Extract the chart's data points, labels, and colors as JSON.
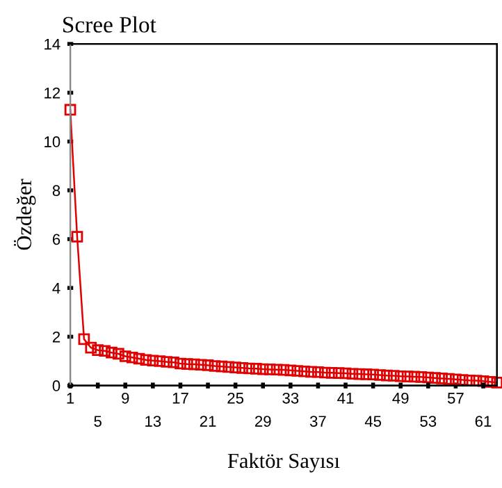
{
  "chart_data": {
    "type": "line",
    "title": "Scree Plot",
    "xlabel": "Faktör Sayısı",
    "ylabel": "Özdeğer",
    "x": [
      1,
      2,
      3,
      4,
      5,
      6,
      7,
      8,
      9,
      10,
      11,
      12,
      13,
      14,
      15,
      16,
      17,
      18,
      19,
      20,
      21,
      22,
      23,
      24,
      25,
      26,
      27,
      28,
      29,
      30,
      31,
      32,
      33,
      34,
      35,
      36,
      37,
      38,
      39,
      40,
      41,
      42,
      43,
      44,
      45,
      46,
      47,
      48,
      49,
      50,
      51,
      52,
      53,
      54,
      55,
      56,
      57,
      58,
      59,
      60,
      61,
      62,
      63
    ],
    "series": [
      {
        "color": "#e00000",
        "values": [
          11.3,
          6.1,
          1.9,
          1.55,
          1.45,
          1.42,
          1.35,
          1.3,
          1.2,
          1.15,
          1.1,
          1.05,
          1.02,
          1.0,
          0.97,
          0.95,
          0.9,
          0.88,
          0.87,
          0.85,
          0.83,
          0.8,
          0.78,
          0.76,
          0.74,
          0.72,
          0.7,
          0.69,
          0.67,
          0.66,
          0.65,
          0.64,
          0.62,
          0.6,
          0.58,
          0.56,
          0.55,
          0.53,
          0.52,
          0.51,
          0.5,
          0.48,
          0.47,
          0.46,
          0.45,
          0.43,
          0.41,
          0.4,
          0.38,
          0.37,
          0.36,
          0.35,
          0.33,
          0.31,
          0.29,
          0.27,
          0.25,
          0.23,
          0.21,
          0.2,
          0.18,
          0.15,
          0.12
        ]
      }
    ],
    "xlim": [
      1,
      63
    ],
    "ylim": [
      0,
      14
    ],
    "xticks": [
      1,
      9,
      17,
      25,
      33,
      41,
      49,
      57
    ],
    "x2lim": [
      1,
      63
    ],
    "x2ticks": [
      5,
      13,
      21,
      29,
      37,
      45,
      53,
      61
    ],
    "yticks": [
      0,
      2,
      4,
      6,
      8,
      10,
      12,
      14
    ],
    "marker": "square",
    "line_style": "solid",
    "grid": false,
    "legend": false
  }
}
